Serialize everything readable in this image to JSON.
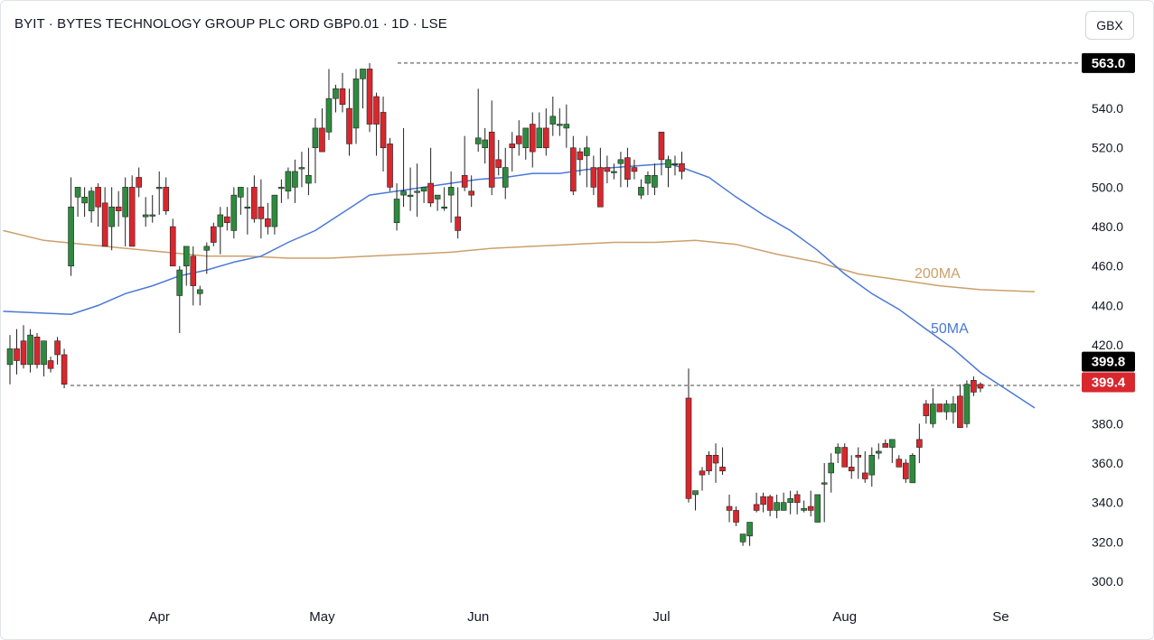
{
  "header": {
    "title": "BYIT · BYTES TECHNOLOGY GROUP PLC ORD GBP0.01 · 1D · LSE",
    "currency_button": "GBX"
  },
  "chart_data": {
    "type": "candlestick",
    "title": "BYIT · BYTES TECHNOLOGY GROUP PLC ORD GBP0.01 · 1D · LSE",
    "ylim": [
      295,
      578
    ],
    "y_ticks": [
      "300.0",
      "320.0",
      "340.0",
      "360.0",
      "380.0",
      "400.0",
      "420.0",
      "440.0",
      "460.0",
      "480.0",
      "500.0",
      "520.0",
      "540.0"
    ],
    "x_ticks": [
      {
        "label": "Apr",
        "index": 22
      },
      {
        "label": "May",
        "index": 46
      },
      {
        "label": "Jun",
        "index": 69
      },
      {
        "label": "Jul",
        "index": 96
      },
      {
        "label": "Aug",
        "index": 123
      },
      {
        "label": "Se",
        "index": 146
      }
    ],
    "candles": [
      [
        410,
        425,
        400,
        418
      ],
      [
        418,
        428,
        405,
        412
      ],
      [
        422,
        430,
        408,
        410
      ],
      [
        410,
        428,
        406,
        425
      ],
      [
        424,
        426,
        408,
        410
      ],
      [
        410,
        420,
        404,
        422
      ],
      [
        412,
        414,
        406,
        408
      ],
      [
        422,
        424,
        410,
        415
      ],
      [
        415,
        418,
        398,
        400
      ],
      [
        460,
        505,
        455,
        490
      ],
      [
        495,
        500,
        485,
        500
      ],
      [
        492,
        500,
        485,
        495
      ],
      [
        488,
        500,
        482,
        498
      ],
      [
        500,
        502,
        480,
        490
      ],
      [
        492,
        500,
        470,
        470
      ],
      [
        480,
        500,
        468,
        490
      ],
      [
        490,
        498,
        480,
        488
      ],
      [
        485,
        505,
        470,
        500
      ],
      [
        500,
        506,
        470,
        470
      ],
      [
        505,
        510,
        495,
        500
      ],
      [
        485,
        495,
        480,
        486
      ],
      [
        486,
        496,
        482,
        486
      ],
      [
        500,
        508,
        486,
        500
      ],
      [
        500,
        505,
        486,
        488
      ],
      [
        480,
        484,
        460,
        460
      ],
      [
        445,
        460,
        426,
        458
      ],
      [
        460,
        470,
        450,
        470
      ],
      [
        465,
        470,
        440,
        450
      ],
      [
        446,
        450,
        440,
        448
      ],
      [
        468,
        472,
        456,
        470
      ],
      [
        480,
        482,
        470,
        472
      ],
      [
        480,
        490,
        466,
        486
      ],
      [
        485,
        490,
        478,
        482
      ],
      [
        478,
        500,
        474,
        496
      ],
      [
        495,
        500,
        486,
        500
      ],
      [
        490,
        500,
        476,
        490
      ],
      [
        500,
        506,
        482,
        484
      ],
      [
        490,
        504,
        474,
        484
      ],
      [
        484,
        492,
        476,
        480
      ],
      [
        480,
        496,
        476,
        496
      ],
      [
        500,
        504,
        492,
        500
      ],
      [
        498,
        510,
        494,
        508
      ],
      [
        500,
        514,
        492,
        508
      ],
      [
        510,
        518,
        500,
        510
      ],
      [
        502,
        520,
        496,
        506
      ],
      [
        520,
        535,
        502,
        530
      ],
      [
        530,
        540,
        518,
        518
      ],
      [
        528,
        560,
        524,
        545
      ],
      [
        545,
        552,
        538,
        550
      ],
      [
        550,
        558,
        538,
        542
      ],
      [
        540,
        550,
        516,
        522
      ],
      [
        530,
        560,
        522,
        555
      ],
      [
        555,
        560,
        540,
        560
      ],
      [
        560,
        563,
        528,
        532
      ],
      [
        546,
        548,
        516,
        532
      ],
      [
        538,
        546,
        508,
        520
      ],
      [
        522,
        525,
        498,
        500
      ],
      [
        482,
        502,
        478,
        494
      ],
      [
        496,
        530,
        490,
        498
      ],
      [
        496,
        510,
        488,
        496
      ],
      [
        498,
        512,
        485,
        498
      ],
      [
        498,
        500,
        492,
        500
      ],
      [
        502,
        520,
        490,
        492
      ],
      [
        494,
        496,
        488,
        496
      ],
      [
        490,
        500,
        488,
        490
      ],
      [
        496,
        508,
        482,
        500
      ],
      [
        485,
        500,
        474,
        478
      ],
      [
        506,
        526,
        498,
        500
      ],
      [
        498,
        506,
        490,
        496
      ],
      [
        522,
        550,
        518,
        525
      ],
      [
        520,
        530,
        512,
        524
      ],
      [
        528,
        544,
        496,
        500
      ],
      [
        514,
        524,
        506,
        510
      ],
      [
        500,
        520,
        494,
        510
      ],
      [
        522,
        528,
        508,
        520
      ],
      [
        526,
        534,
        516,
        522
      ],
      [
        520,
        530,
        514,
        530
      ],
      [
        532,
        538,
        510,
        518
      ],
      [
        520,
        538,
        520,
        530
      ],
      [
        530,
        540,
        516,
        520
      ],
      [
        532,
        546,
        526,
        536
      ],
      [
        532,
        540,
        526,
        532
      ],
      [
        530,
        542,
        520,
        532
      ],
      [
        520,
        526,
        496,
        498
      ],
      [
        518,
        520,
        506,
        514
      ],
      [
        516,
        526,
        500,
        520
      ],
      [
        510,
        516,
        496,
        500
      ],
      [
        510,
        520,
        490,
        490
      ],
      [
        510,
        516,
        502,
        508
      ],
      [
        508,
        512,
        504,
        508
      ],
      [
        512,
        518,
        500,
        514
      ],
      [
        515,
        520,
        500,
        504
      ],
      [
        510,
        514,
        504,
        508
      ],
      [
        496,
        504,
        494,
        500
      ],
      [
        502,
        508,
        496,
        506
      ],
      [
        500,
        512,
        496,
        506
      ],
      [
        528,
        528,
        506,
        514
      ],
      [
        510,
        516,
        500,
        514
      ],
      [
        512,
        516,
        506,
        512
      ],
      [
        512,
        518,
        504,
        508
      ],
      [
        393,
        408,
        340,
        342
      ],
      [
        344,
        346,
        336,
        346
      ],
      [
        356,
        358,
        346,
        354
      ],
      [
        364,
        366,
        354,
        356
      ],
      [
        364,
        370,
        350,
        360
      ],
      [
        358,
        368,
        354,
        356
      ],
      [
        338,
        344,
        330,
        336
      ],
      [
        336,
        338,
        328,
        330
      ],
      [
        320,
        324,
        318,
        324
      ],
      [
        323,
        330,
        318,
        330
      ],
      [
        339,
        345,
        335,
        336
      ],
      [
        343,
        345,
        335,
        339
      ],
      [
        343,
        344,
        333,
        336
      ],
      [
        336,
        344,
        332,
        340
      ],
      [
        336,
        345,
        336,
        340
      ],
      [
        340,
        346,
        334,
        342
      ],
      [
        344,
        346,
        334,
        340
      ],
      [
        336,
        341,
        335,
        337
      ],
      [
        338,
        346,
        333,
        336
      ],
      [
        330,
        344,
        330,
        344
      ],
      [
        350,
        360,
        330,
        350
      ],
      [
        355,
        365,
        345,
        360
      ],
      [
        365,
        370,
        360,
        368
      ],
      [
        368,
        370,
        360,
        358
      ],
      [
        358,
        364,
        352,
        356
      ],
      [
        364,
        368,
        352,
        363
      ],
      [
        355,
        366,
        350,
        352
      ],
      [
        354,
        368,
        348,
        364
      ],
      [
        365,
        370,
        362,
        366
      ],
      [
        370,
        372,
        368,
        368
      ],
      [
        368,
        370,
        360,
        372
      ],
      [
        362,
        364,
        358,
        358
      ],
      [
        360,
        362,
        350,
        352
      ],
      [
        350,
        365,
        350,
        364
      ],
      [
        372,
        380,
        360,
        368
      ],
      [
        390,
        392,
        380,
        384
      ],
      [
        380,
        398,
        378,
        390
      ],
      [
        390,
        390,
        386,
        386
      ],
      [
        386,
        392,
        382,
        390
      ],
      [
        386,
        394,
        380,
        390
      ],
      [
        394,
        400,
        378,
        378
      ],
      [
        380,
        402,
        378,
        400
      ],
      [
        402,
        404,
        394,
        396
      ],
      [
        400,
        401,
        396,
        398
      ]
    ],
    "ma50": [
      [
        -1,
        437
      ],
      [
        9,
        435.5
      ],
      [
        13,
        440
      ],
      [
        17,
        446
      ],
      [
        21,
        450
      ],
      [
        25,
        455
      ],
      [
        29,
        458
      ],
      [
        33,
        462
      ],
      [
        37,
        465
      ],
      [
        41,
        472
      ],
      [
        45,
        478
      ],
      [
        49,
        487
      ],
      [
        53,
        496
      ],
      [
        57,
        498
      ],
      [
        61,
        500
      ],
      [
        65,
        502
      ],
      [
        69,
        504
      ],
      [
        73,
        505
      ],
      [
        77,
        507
      ],
      [
        81,
        507
      ],
      [
        85,
        509
      ],
      [
        89,
        510
      ],
      [
        93,
        511
      ],
      [
        97,
        512
      ],
      [
        99,
        510
      ],
      [
        103,
        505
      ],
      [
        107,
        495
      ],
      [
        111,
        486
      ],
      [
        115,
        478
      ],
      [
        119,
        468
      ],
      [
        123,
        456
      ],
      [
        127,
        446
      ],
      [
        131,
        438
      ],
      [
        135,
        428
      ],
      [
        139,
        418
      ],
      [
        143,
        406
      ],
      [
        147,
        397
      ],
      [
        151,
        388
      ]
    ],
    "ma200": [
      [
        -1,
        478
      ],
      [
        5,
        473
      ],
      [
        11,
        471
      ],
      [
        17,
        469
      ],
      [
        23,
        467
      ],
      [
        29,
        465
      ],
      [
        35,
        465
      ],
      [
        41,
        464
      ],
      [
        47,
        464
      ],
      [
        53,
        465
      ],
      [
        59,
        466
      ],
      [
        65,
        467
      ],
      [
        71,
        469
      ],
      [
        77,
        470
      ],
      [
        83,
        471
      ],
      [
        89,
        472
      ],
      [
        95,
        472
      ],
      [
        101,
        473
      ],
      [
        107,
        471
      ],
      [
        113,
        466
      ],
      [
        119,
        462
      ],
      [
        125,
        456
      ],
      [
        131,
        453
      ],
      [
        137,
        450
      ],
      [
        143,
        448
      ],
      [
        151,
        447
      ]
    ],
    "series": [
      {
        "name": "200MA"
      },
      {
        "name": "50MA"
      }
    ],
    "price_labels": [
      "563.0",
      "399.8",
      "399.4"
    ],
    "reference_lines": [
      563,
      399.4
    ],
    "colors": {
      "up": "#2e8b3e",
      "down": "#d9272e",
      "ma50": "#4a78d6",
      "ma200": "#cba06a",
      "last_price": "#d9272e",
      "high_tag": "#000000"
    }
  }
}
